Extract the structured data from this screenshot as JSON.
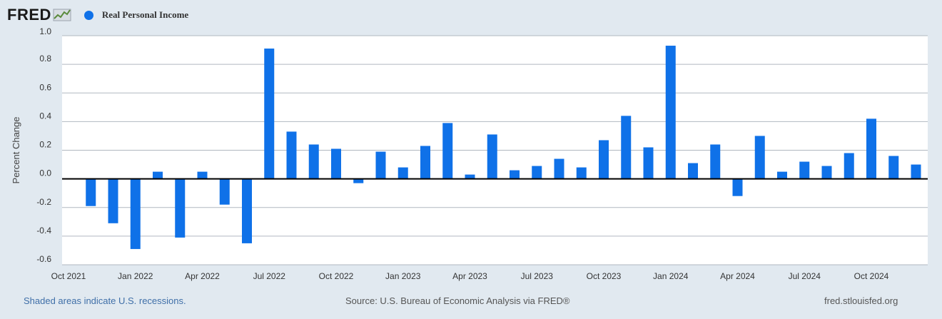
{
  "header": {
    "logo_text": "FRED",
    "series_label": "Real Personal Income"
  },
  "colors": {
    "bar": "#0f71e8",
    "grid": "#b0b8c0",
    "zero_line": "#000000",
    "axis_text": "#333333",
    "background": "#e1e9f0",
    "plot_background": "#ffffff"
  },
  "chart_data": {
    "type": "bar",
    "title": "",
    "ylabel": "Percent Change",
    "xlabel": "",
    "ylim": [
      -0.6,
      1.0
    ],
    "yticks": [
      1.0,
      0.8,
      0.6,
      0.4,
      0.2,
      0.0,
      -0.2,
      -0.4,
      -0.6
    ],
    "ytick_labels": [
      "1.0",
      "0.8",
      "0.6",
      "0.4",
      "0.2",
      "0.0",
      "-0.2",
      "-0.4",
      "-0.6"
    ],
    "xtick_labels": [
      "Oct 2021",
      "Jan 2022",
      "Apr 2022",
      "Jul 2022",
      "Oct 2022",
      "Jan 2023",
      "Apr 2023",
      "Jul 2023",
      "Oct 2023",
      "Jan 2024",
      "Apr 2024",
      "Jul 2024",
      "Oct 2024"
    ],
    "grid": true,
    "series": [
      {
        "name": "Real Personal Income",
        "categories": [
          "Nov 2021",
          "Dec 2021",
          "Jan 2022",
          "Feb 2022",
          "Mar 2022",
          "Apr 2022",
          "May 2022",
          "Jun 2022",
          "Jul 2022",
          "Aug 2022",
          "Sep 2022",
          "Oct 2022",
          "Nov 2022",
          "Dec 2022",
          "Jan 2023",
          "Feb 2023",
          "Mar 2023",
          "Apr 2023",
          "May 2023",
          "Jun 2023",
          "Jul 2023",
          "Aug 2023",
          "Sep 2023",
          "Oct 2023",
          "Nov 2023",
          "Dec 2023",
          "Jan 2024",
          "Feb 2024",
          "Mar 2024",
          "Apr 2024",
          "May 2024",
          "Jun 2024",
          "Jul 2024",
          "Aug 2024",
          "Sep 2024",
          "Oct 2024",
          "Nov 2024",
          "Dec 2024"
        ],
        "values": [
          -0.19,
          -0.31,
          -0.49,
          0.05,
          -0.41,
          0.05,
          -0.18,
          -0.45,
          0.91,
          0.33,
          0.24,
          0.21,
          -0.03,
          0.19,
          0.08,
          0.23,
          0.39,
          0.03,
          0.31,
          0.06,
          0.09,
          0.14,
          0.08,
          0.27,
          0.44,
          0.22,
          0.93,
          0.11,
          0.24,
          -0.12,
          0.3,
          0.05,
          0.12,
          0.09,
          0.18,
          0.42,
          0.16,
          0.1
        ]
      }
    ]
  },
  "footer": {
    "recession_note": "Shaded areas indicate U.S. recessions.",
    "source": "Source: U.S. Bureau of Economic Analysis via FRED®",
    "site": "fred.stlouisfed.org"
  }
}
